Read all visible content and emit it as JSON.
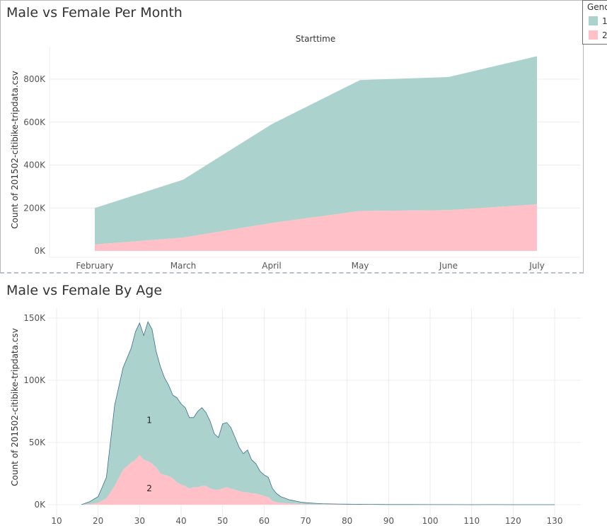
{
  "legend": {
    "title": "Gender",
    "items": [
      {
        "label": "1",
        "color": "#abd2cd"
      },
      {
        "label": "2",
        "color": "#ffc0c7"
      }
    ]
  },
  "colors": {
    "male": "#abd2cd",
    "female": "#ffc0c7",
    "outline": "#3f6e8c",
    "grid": "#ececec"
  },
  "chart_data": [
    {
      "type": "area",
      "title": "Male vs Female Per Month",
      "subtitle": "Starttime",
      "xlabel": "",
      "ylabel": "Count of 201502-citibike-tripdata.csv",
      "stacked": true,
      "ylim": [
        0,
        900000
      ],
      "yticks": [
        0,
        200000,
        400000,
        600000,
        800000
      ],
      "ytick_labels": [
        "0K",
        "200K",
        "400K",
        "600K",
        "800K"
      ],
      "categories": [
        "February",
        "March",
        "April",
        "May",
        "June",
        "July"
      ],
      "series": [
        {
          "name": "1",
          "values": [
            170000,
            270000,
            460000,
            610000,
            620000,
            690000
          ]
        },
        {
          "name": "2",
          "values": [
            30000,
            62000,
            130000,
            186000,
            190000,
            217000
          ]
        }
      ]
    },
    {
      "type": "area",
      "title": "Male vs Female By Age",
      "xlabel": "",
      "ylabel": "Count of 201502-citibike-tripdata.csv",
      "stacked": true,
      "xlim": [
        10,
        133
      ],
      "xticks": [
        10,
        20,
        30,
        40,
        50,
        60,
        70,
        80,
        90,
        100,
        110,
        120,
        130
      ],
      "ylim": [
        0,
        150000
      ],
      "yticks": [
        0,
        50000,
        100000,
        150000
      ],
      "ytick_labels": [
        "0K",
        "50K",
        "100K",
        "150K"
      ],
      "annotations": [
        {
          "text": "1",
          "x": 32,
          "y": 68000
        },
        {
          "text": "2",
          "x": 32,
          "y": 13000
        }
      ],
      "x": [
        16,
        18,
        20,
        22,
        24,
        26,
        28,
        29,
        30,
        31,
        32,
        33,
        34,
        35,
        36,
        37,
        38,
        39,
        40,
        41,
        42,
        43,
        44,
        45,
        46,
        47,
        48,
        49,
        50,
        51,
        52,
        53,
        54,
        55,
        56,
        57,
        58,
        59,
        60,
        61,
        62,
        63,
        64,
        65,
        66,
        67,
        68,
        69,
        70,
        72,
        74,
        76,
        78,
        80,
        82,
        84,
        86,
        88,
        90,
        95,
        100,
        105,
        110,
        115,
        120,
        125,
        130
      ],
      "series": [
        {
          "name": "1",
          "values": [
            0,
            2000,
            5000,
            17000,
            65000,
            82000,
            92000,
            103000,
            106000,
            100000,
            112000,
            108000,
            93000,
            86000,
            78000,
            73000,
            67000,
            68000,
            65000,
            63000,
            57000,
            56000,
            61000,
            63000,
            59000,
            54000,
            45000,
            42000,
            52000,
            52000,
            49000,
            42000,
            35000,
            31000,
            34000,
            27000,
            24000,
            19000,
            17000,
            16000,
            10000,
            7000,
            5000,
            4000,
            3000,
            2500,
            2000,
            1600,
            1300,
            900,
            600,
            500,
            400,
            300,
            250,
            200,
            150,
            120,
            100,
            80,
            60,
            40,
            20,
            50,
            20,
            10,
            0
          ]
        },
        {
          "name": "2",
          "values": [
            0,
            500,
            1500,
            5000,
            15000,
            28000,
            34000,
            36000,
            40000,
            36000,
            35000,
            33000,
            30000,
            25000,
            24000,
            23000,
            21000,
            18000,
            16000,
            15000,
            13000,
            14000,
            14000,
            15000,
            15000,
            13000,
            12000,
            12000,
            13000,
            14000,
            13000,
            12000,
            11000,
            10000,
            10000,
            9000,
            9000,
            8000,
            7000,
            6000,
            3000,
            2000,
            1500,
            1200,
            1000,
            800,
            600,
            400,
            300,
            250,
            200,
            150,
            120,
            100,
            80,
            60,
            50,
            40,
            30,
            20,
            15,
            10,
            8,
            5,
            3,
            2,
            0
          ]
        }
      ]
    }
  ]
}
